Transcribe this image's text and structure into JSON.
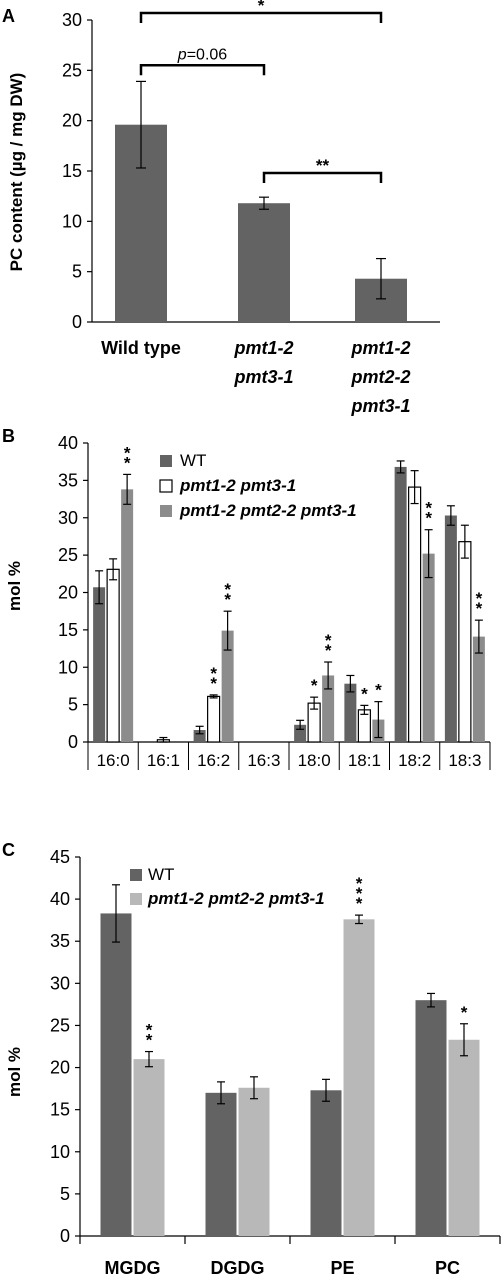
{
  "chart_data": [
    {
      "panel": "A",
      "type": "bar",
      "ylabel": "PC content (µg / mg DW)",
      "ylim": [
        0,
        30
      ],
      "yticks": [
        "0",
        "5",
        "10",
        "15",
        "20",
        "25",
        "30"
      ],
      "categories": [
        [
          "Wild type"
        ],
        [
          "pmt1-2",
          "pmt3-1"
        ],
        [
          "pmt1-2",
          "pmt2-2",
          "pmt3-1"
        ]
      ],
      "values": [
        19.6,
        11.8,
        4.3
      ],
      "errors": [
        4.3,
        0.6,
        2.0
      ],
      "bar_color": "#636363",
      "significance": [
        {
          "from": 0,
          "to": 1,
          "label": "p=0.06",
          "label_prefix": "p",
          "label_rest": "=0.06",
          "y": 25.5
        },
        {
          "from": 1,
          "to": 2,
          "label": "**",
          "y": 14.8
        },
        {
          "from": 0,
          "to": 2,
          "label": "*",
          "y": 30.7
        }
      ]
    },
    {
      "panel": "B",
      "type": "bar",
      "ylabel": "mol %",
      "ylim": [
        0,
        40
      ],
      "yticks": [
        "0",
        "5",
        "10",
        "15",
        "20",
        "25",
        "30",
        "35",
        "40"
      ],
      "categories": [
        "16:0",
        "16:1",
        "16:2",
        "16:3",
        "18:0",
        "18:1",
        "18:2",
        "18:3"
      ],
      "series": [
        {
          "name": "WT",
          "color": "#636363",
          "values": [
            20.7,
            0,
            1.6,
            0,
            2.3,
            7.8,
            36.8,
            30.3
          ],
          "errors": [
            2.2,
            0,
            0.5,
            0,
            0.6,
            1.1,
            0.8,
            1.3
          ],
          "sig": [
            "",
            "",
            "",
            "",
            "",
            "",
            "",
            ""
          ]
        },
        {
          "name": "pmt1-2 pmt3-1",
          "color": "#ffffff",
          "values": [
            23.1,
            0.3,
            6.1,
            0,
            5.2,
            4.3,
            34.1,
            26.8
          ],
          "errors": [
            1.4,
            0.3,
            0.2,
            0,
            0.8,
            0.6,
            2.2,
            2.2
          ],
          "sig": [
            "",
            "",
            "**",
            "",
            "*",
            "*",
            "",
            ""
          ]
        },
        {
          "name": "pmt1-2 pmt2-2 pmt3-1",
          "color": "#8c8c8c",
          "values": [
            33.8,
            0,
            14.9,
            0,
            8.9,
            3.0,
            25.2,
            14.1
          ],
          "errors": [
            2.0,
            0,
            2.6,
            0,
            1.8,
            2.4,
            3.2,
            2.2
          ],
          "sig": [
            "**",
            "",
            "**",
            "",
            "**",
            "*",
            "**",
            "**"
          ]
        }
      ],
      "legend_position": "top-center"
    },
    {
      "panel": "C",
      "type": "bar",
      "ylabel": "mol %",
      "ylim": [
        0,
        45
      ],
      "yticks": [
        "0",
        "5",
        "10",
        "15",
        "20",
        "25",
        "30",
        "35",
        "40",
        "45"
      ],
      "categories": [
        "MGDG",
        "DGDG",
        "PE",
        "PC"
      ],
      "series": [
        {
          "name": "WT",
          "color": "#636363",
          "values": [
            38.3,
            17.0,
            17.3,
            28.0
          ],
          "errors": [
            3.4,
            1.3,
            1.3,
            0.8
          ],
          "sig": [
            "",
            "",
            "",
            ""
          ]
        },
        {
          "name": "pmt1-2 pmt2-2 pmt3-1",
          "color": "#b8b8b8",
          "values": [
            21.0,
            17.6,
            37.6,
            23.3
          ],
          "errors": [
            0.9,
            1.3,
            0.5,
            1.9
          ],
          "sig": [
            "**",
            "",
            "***",
            "*"
          ]
        }
      ],
      "legend_position": "top-left"
    }
  ]
}
